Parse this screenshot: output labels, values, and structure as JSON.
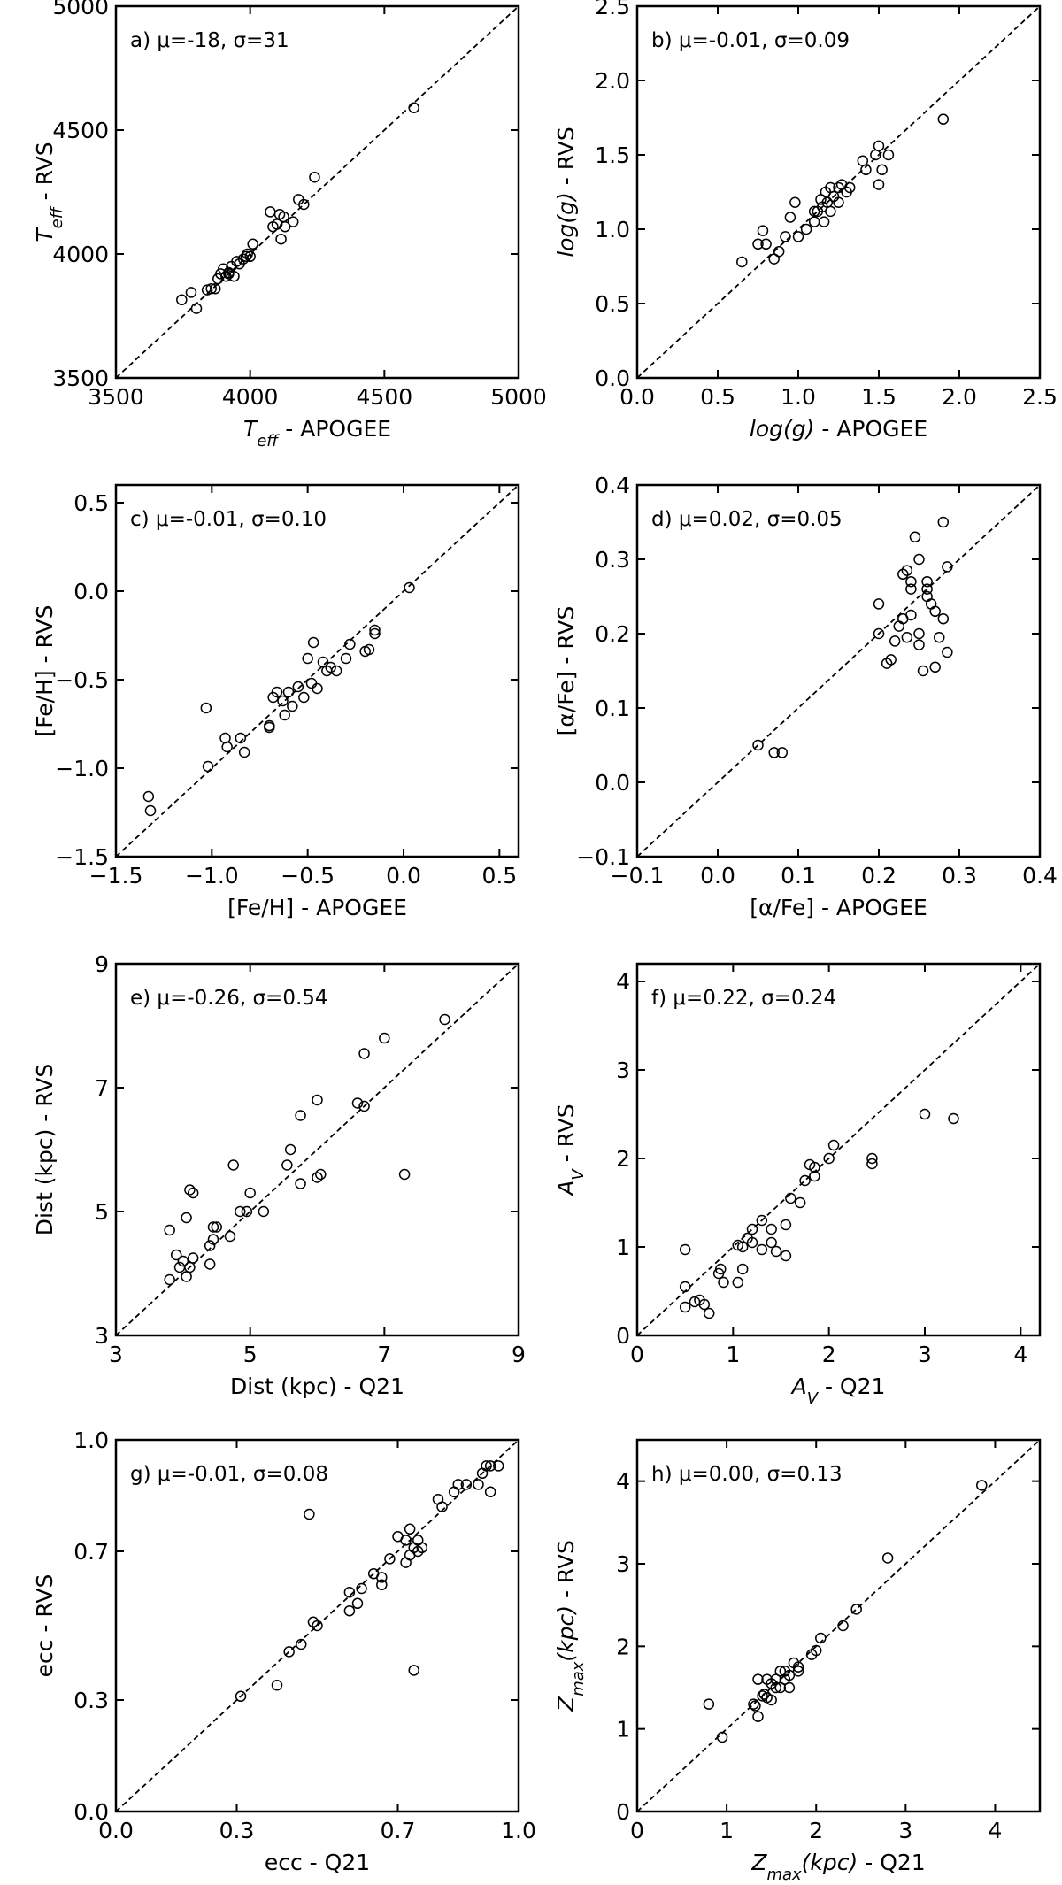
{
  "chart_data": [
    {
      "type": "scatter",
      "annotation": "a) μ=-18, σ=31",
      "color": "#000000",
      "identity_line": true,
      "xlabel": [
        {
          "text": "T",
          "style": "italic"
        },
        {
          "text": "eff",
          "style": "italic-sub"
        },
        {
          "text": " - APOGEE"
        }
      ],
      "ylabel": [
        {
          "text": "T",
          "style": "italic"
        },
        {
          "text": "eff",
          "style": "italic-sub"
        },
        {
          "text": " - RVS"
        }
      ],
      "xlim": [
        3500,
        5000
      ],
      "ylim": [
        3500,
        5000
      ],
      "xticks": [
        3500,
        4000,
        4500,
        5000
      ],
      "yticks": [
        3500,
        4000,
        4500,
        5000
      ],
      "x": [
        3745,
        3780,
        3800,
        3840,
        3855,
        3870,
        3880,
        3890,
        3900,
        3910,
        3920,
        3930,
        3940,
        3950,
        3960,
        3975,
        3990,
        4000,
        4010,
        4075,
        4085,
        4100,
        4110,
        4115,
        4125,
        4130,
        4160,
        4180,
        4200,
        4240,
        4610,
        3920,
        3985
      ],
      "values": [
        3815,
        3845,
        3780,
        3855,
        3860,
        3860,
        3900,
        3920,
        3940,
        3910,
        3920,
        3950,
        3910,
        3970,
        3960,
        3980,
        4000,
        3990,
        4040,
        4170,
        4110,
        4120,
        4160,
        4060,
        4150,
        4110,
        4130,
        4220,
        4200,
        4310,
        4590,
        3925,
        3990
      ]
    },
    {
      "type": "scatter",
      "annotation": "b) μ=-0.01, σ=0.09",
      "color": "#000000",
      "identity_line": true,
      "xlabel": [
        {
          "text": "log(g)",
          "style": "italic"
        },
        {
          "text": " - APOGEE"
        }
      ],
      "ylabel": [
        {
          "text": "log(g)",
          "style": "italic"
        },
        {
          "text": " - RVS"
        }
      ],
      "xlim": [
        0,
        2.5
      ],
      "ylim": [
        0,
        2.5
      ],
      "xticks": [
        {
          "value": 0,
          "label": "0.0"
        },
        0.5,
        {
          "value": 1,
          "label": "1.0"
        },
        1.5,
        {
          "value": 2,
          "label": "2.0"
        },
        2.5
      ],
      "yticks": [
        {
          "value": 0,
          "label": "0.0"
        },
        0.5,
        {
          "value": 1,
          "label": "1.0"
        },
        1.5,
        {
          "value": 2,
          "label": "2.0"
        },
        2.5
      ],
      "x": [
        0.65,
        0.75,
        0.78,
        0.8,
        0.85,
        0.88,
        0.92,
        0.95,
        0.98,
        1.0,
        1.05,
        1.1,
        1.12,
        1.14,
        1.15,
        1.16,
        1.17,
        1.18,
        1.2,
        1.2,
        1.22,
        1.25,
        1.27,
        1.3,
        1.32,
        1.4,
        1.42,
        1.48,
        1.5,
        1.5,
        1.52,
        1.56,
        1.9,
        1.1,
        1.25
      ],
      "values": [
        0.78,
        0.9,
        0.99,
        0.9,
        0.8,
        0.85,
        0.95,
        1.08,
        1.18,
        0.95,
        1.0,
        1.05,
        1.12,
        1.2,
        1.15,
        1.05,
        1.25,
        1.18,
        1.12,
        1.28,
        1.22,
        1.18,
        1.3,
        1.25,
        1.28,
        1.46,
        1.4,
        1.5,
        1.56,
        1.3,
        1.4,
        1.5,
        1.74,
        1.12,
        1.28
      ]
    },
    {
      "type": "scatter",
      "annotation": "c) μ=-0.01, σ=0.10",
      "color": "#000000",
      "identity_line": true,
      "xlabel": [
        {
          "text": "[Fe/H] - APOGEE"
        }
      ],
      "ylabel": [
        {
          "text": "[Fe/H] - RVS"
        }
      ],
      "xlim": [
        -1.5,
        0.6
      ],
      "ylim": [
        -1.5,
        0.6
      ],
      "xticks": [
        {
          "value": -1.5,
          "label": "−1.5"
        },
        {
          "value": -1,
          "label": "−1.0"
        },
        {
          "value": -0.5,
          "label": "−0.5"
        },
        {
          "value": 0,
          "label": "0.0"
        },
        0.5
      ],
      "yticks": [
        {
          "value": -1.5,
          "label": "−1.5"
        },
        {
          "value": -1,
          "label": "−1.0"
        },
        {
          "value": -0.5,
          "label": "−0.5"
        },
        {
          "value": 0,
          "label": "0.0"
        },
        0.5
      ],
      "x": [
        -1.33,
        -1.32,
        -1.03,
        -1.02,
        -0.93,
        -0.92,
        -0.85,
        -0.83,
        -0.7,
        -0.68,
        -0.66,
        -0.63,
        -0.62,
        -0.6,
        -0.58,
        -0.55,
        -0.52,
        -0.5,
        -0.48,
        -0.47,
        -0.45,
        -0.42,
        -0.4,
        -0.38,
        -0.35,
        -0.3,
        -0.28,
        -0.2,
        -0.18,
        -0.15,
        -0.15,
        0.03,
        -0.7
      ],
      "values": [
        -1.16,
        -1.24,
        -0.66,
        -0.99,
        -0.83,
        -0.88,
        -0.83,
        -0.91,
        -0.76,
        -0.6,
        -0.57,
        -0.62,
        -0.7,
        -0.57,
        -0.65,
        -0.54,
        -0.6,
        -0.38,
        -0.52,
        -0.29,
        -0.55,
        -0.4,
        -0.45,
        -0.43,
        -0.45,
        -0.38,
        -0.3,
        -0.34,
        -0.33,
        -0.22,
        -0.24,
        0.02,
        -0.77
      ]
    },
    {
      "type": "scatter",
      "annotation": "d) μ=0.02, σ=0.05",
      "color": "#000000",
      "identity_line": true,
      "xlabel": [
        {
          "text": "[α/Fe] - APOGEE"
        }
      ],
      "ylabel": [
        {
          "text": "[α/Fe] - RVS"
        }
      ],
      "xlim": [
        -0.1,
        0.4
      ],
      "ylim": [
        -0.1,
        0.4
      ],
      "xticks": [
        {
          "value": -0.1,
          "label": "−0.1"
        },
        {
          "value": 0,
          "label": "0.0"
        },
        0.1,
        0.2,
        0.3,
        0.4
      ],
      "yticks": [
        {
          "value": -0.1,
          "label": "−0.1"
        },
        {
          "value": 0,
          "label": "0.0"
        },
        0.1,
        0.2,
        0.3,
        0.4
      ],
      "x": [
        0.05,
        0.07,
        0.08,
        0.2,
        0.2,
        0.21,
        0.215,
        0.22,
        0.225,
        0.23,
        0.23,
        0.235,
        0.235,
        0.24,
        0.24,
        0.245,
        0.25,
        0.25,
        0.255,
        0.26,
        0.26,
        0.265,
        0.27,
        0.27,
        0.275,
        0.28,
        0.28,
        0.285,
        0.285,
        0.25,
        0.24,
        0.26
      ],
      "values": [
        0.05,
        0.04,
        0.04,
        0.2,
        0.24,
        0.16,
        0.165,
        0.19,
        0.21,
        0.22,
        0.28,
        0.285,
        0.195,
        0.27,
        0.26,
        0.33,
        0.3,
        0.2,
        0.15,
        0.25,
        0.27,
        0.24,
        0.23,
        0.155,
        0.195,
        0.35,
        0.22,
        0.29,
        0.175,
        0.185,
        0.225,
        0.26
      ]
    },
    {
      "type": "scatter",
      "annotation": "e) μ=-0.26, σ=0.54",
      "color": "#000000",
      "identity_line": true,
      "xlabel": [
        {
          "text": "Dist (kpc) - Q21"
        }
      ],
      "ylabel": [
        {
          "text": "Dist (kpc) - RVS"
        }
      ],
      "xlim": [
        3,
        9
      ],
      "ylim": [
        3,
        9
      ],
      "xticks": [
        3,
        5,
        7,
        9
      ],
      "yticks": [
        3,
        5,
        7,
        9
      ],
      "x": [
        3.8,
        3.8,
        3.9,
        3.95,
        4.0,
        4.05,
        4.05,
        4.1,
        4.1,
        4.15,
        4.15,
        4.4,
        4.4,
        4.45,
        4.45,
        4.5,
        4.7,
        4.75,
        4.85,
        4.95,
        5.0,
        5.2,
        5.55,
        5.6,
        5.75,
        5.75,
        6.0,
        6.0,
        6.05,
        6.6,
        6.7,
        6.7,
        7.0,
        7.3,
        7.9
      ],
      "values": [
        4.7,
        3.9,
        4.3,
        4.1,
        4.2,
        3.95,
        4.9,
        4.1,
        5.35,
        5.3,
        4.25,
        4.15,
        4.45,
        4.75,
        4.55,
        4.75,
        4.6,
        5.75,
        5.0,
        5.0,
        5.3,
        5.0,
        5.75,
        6.0,
        5.45,
        6.55,
        6.8,
        5.55,
        5.6,
        6.75,
        6.7,
        7.55,
        7.8,
        5.6,
        8.1
      ]
    },
    {
      "type": "scatter",
      "annotation": "f) μ=0.22, σ=0.24",
      "color": "#000000",
      "identity_line": true,
      "xlabel": [
        {
          "text": "A",
          "style": "italic"
        },
        {
          "text": "V",
          "style": "italic-sub"
        },
        {
          "text": " - Q21"
        }
      ],
      "ylabel": [
        {
          "text": "A",
          "style": "italic"
        },
        {
          "text": "V",
          "style": "italic-sub"
        },
        {
          "text": " - RVS"
        }
      ],
      "xlim": [
        0,
        4.2
      ],
      "ylim": [
        0,
        4.2
      ],
      "xticks": [
        0,
        1,
        2,
        3,
        4
      ],
      "yticks": [
        0,
        1,
        2,
        3,
        4
      ],
      "x": [
        0.5,
        0.5,
        0.5,
        0.6,
        0.65,
        0.7,
        0.75,
        0.85,
        0.87,
        0.9,
        1.05,
        1.05,
        1.1,
        1.1,
        1.15,
        1.2,
        1.2,
        1.3,
        1.3,
        1.4,
        1.4,
        1.45,
        1.55,
        1.55,
        1.6,
        1.7,
        1.75,
        1.8,
        1.85,
        1.85,
        2.0,
        2.05,
        2.45,
        2.45,
        3.0,
        3.3
      ],
      "values": [
        0.97,
        0.55,
        0.32,
        0.38,
        0.4,
        0.35,
        0.25,
        0.7,
        0.75,
        0.6,
        1.02,
        0.6,
        1.0,
        0.75,
        1.1,
        1.2,
        1.05,
        1.3,
        0.97,
        1.2,
        1.05,
        0.95,
        1.25,
        0.9,
        1.55,
        1.5,
        1.75,
        1.93,
        1.9,
        1.8,
        2.0,
        2.15,
        2.0,
        1.94,
        2.5,
        2.45
      ]
    },
    {
      "type": "scatter",
      "annotation": "g) μ=-0.01, σ=0.08",
      "color": "#000000",
      "identity_line": true,
      "xlabel": [
        {
          "text": "ecc - Q21"
        }
      ],
      "ylabel": [
        {
          "text": "ecc - RVS"
        }
      ],
      "xlim": [
        0,
        1
      ],
      "ylim": [
        0,
        1
      ],
      "xticks": [
        {
          "value": 0,
          "label": "0.0"
        },
        0.3,
        0.7,
        {
          "value": 1,
          "label": "1.0"
        }
      ],
      "yticks": [
        {
          "value": 0,
          "label": "0.0"
        },
        0.3,
        0.7,
        {
          "value": 1,
          "label": "1.0"
        }
      ],
      "x": [
        0.31,
        0.4,
        0.43,
        0.46,
        0.48,
        0.49,
        0.5,
        0.58,
        0.58,
        0.6,
        0.61,
        0.64,
        0.66,
        0.66,
        0.68,
        0.7,
        0.72,
        0.72,
        0.73,
        0.73,
        0.74,
        0.74,
        0.75,
        0.75,
        0.76,
        0.8,
        0.81,
        0.84,
        0.85,
        0.87,
        0.9,
        0.91,
        0.92,
        0.93,
        0.93,
        0.95
      ],
      "values": [
        0.31,
        0.34,
        0.43,
        0.45,
        0.8,
        0.51,
        0.5,
        0.59,
        0.54,
        0.56,
        0.6,
        0.64,
        0.61,
        0.63,
        0.68,
        0.74,
        0.73,
        0.67,
        0.69,
        0.76,
        0.71,
        0.38,
        0.7,
        0.73,
        0.71,
        0.84,
        0.82,
        0.86,
        0.88,
        0.88,
        0.88,
        0.91,
        0.93,
        0.93,
        0.86,
        0.93
      ]
    },
    {
      "type": "scatter",
      "annotation": "h) μ=0.00, σ=0.13",
      "color": "#000000",
      "identity_line": true,
      "xlabel": [
        {
          "text": "Z",
          "style": "italic"
        },
        {
          "text": "max",
          "style": "italic-sub"
        },
        {
          "text": "(kpc)",
          "style": "italic"
        },
        {
          "text": " - Q21"
        }
      ],
      "ylabel": [
        {
          "text": "Z",
          "style": "italic"
        },
        {
          "text": "max",
          "style": "italic-sub"
        },
        {
          "text": "(kpc)",
          "style": "italic"
        },
        {
          "text": " - RVS"
        }
      ],
      "xlim": [
        0,
        4.5
      ],
      "ylim": [
        0,
        4.5
      ],
      "xticks": [
        0,
        1,
        2,
        3,
        4
      ],
      "yticks": [
        0,
        1,
        2,
        3,
        4
      ],
      "x": [
        0.8,
        0.95,
        1.3,
        1.32,
        1.35,
        1.35,
        1.4,
        1.42,
        1.45,
        1.5,
        1.5,
        1.55,
        1.55,
        1.6,
        1.6,
        1.65,
        1.65,
        1.7,
        1.7,
        1.75,
        1.8,
        1.8,
        1.95,
        2.0,
        2.05,
        2.3,
        2.45,
        2.8,
        3.85,
        1.45
      ],
      "values": [
        1.3,
        0.9,
        1.3,
        1.28,
        1.15,
        1.6,
        1.4,
        1.42,
        1.38,
        1.55,
        1.35,
        1.6,
        1.5,
        1.5,
        1.7,
        1.6,
        1.7,
        1.5,
        1.65,
        1.8,
        1.75,
        1.7,
        1.9,
        1.95,
        2.1,
        2.25,
        2.45,
        3.07,
        3.95,
        1.6
      ]
    }
  ]
}
